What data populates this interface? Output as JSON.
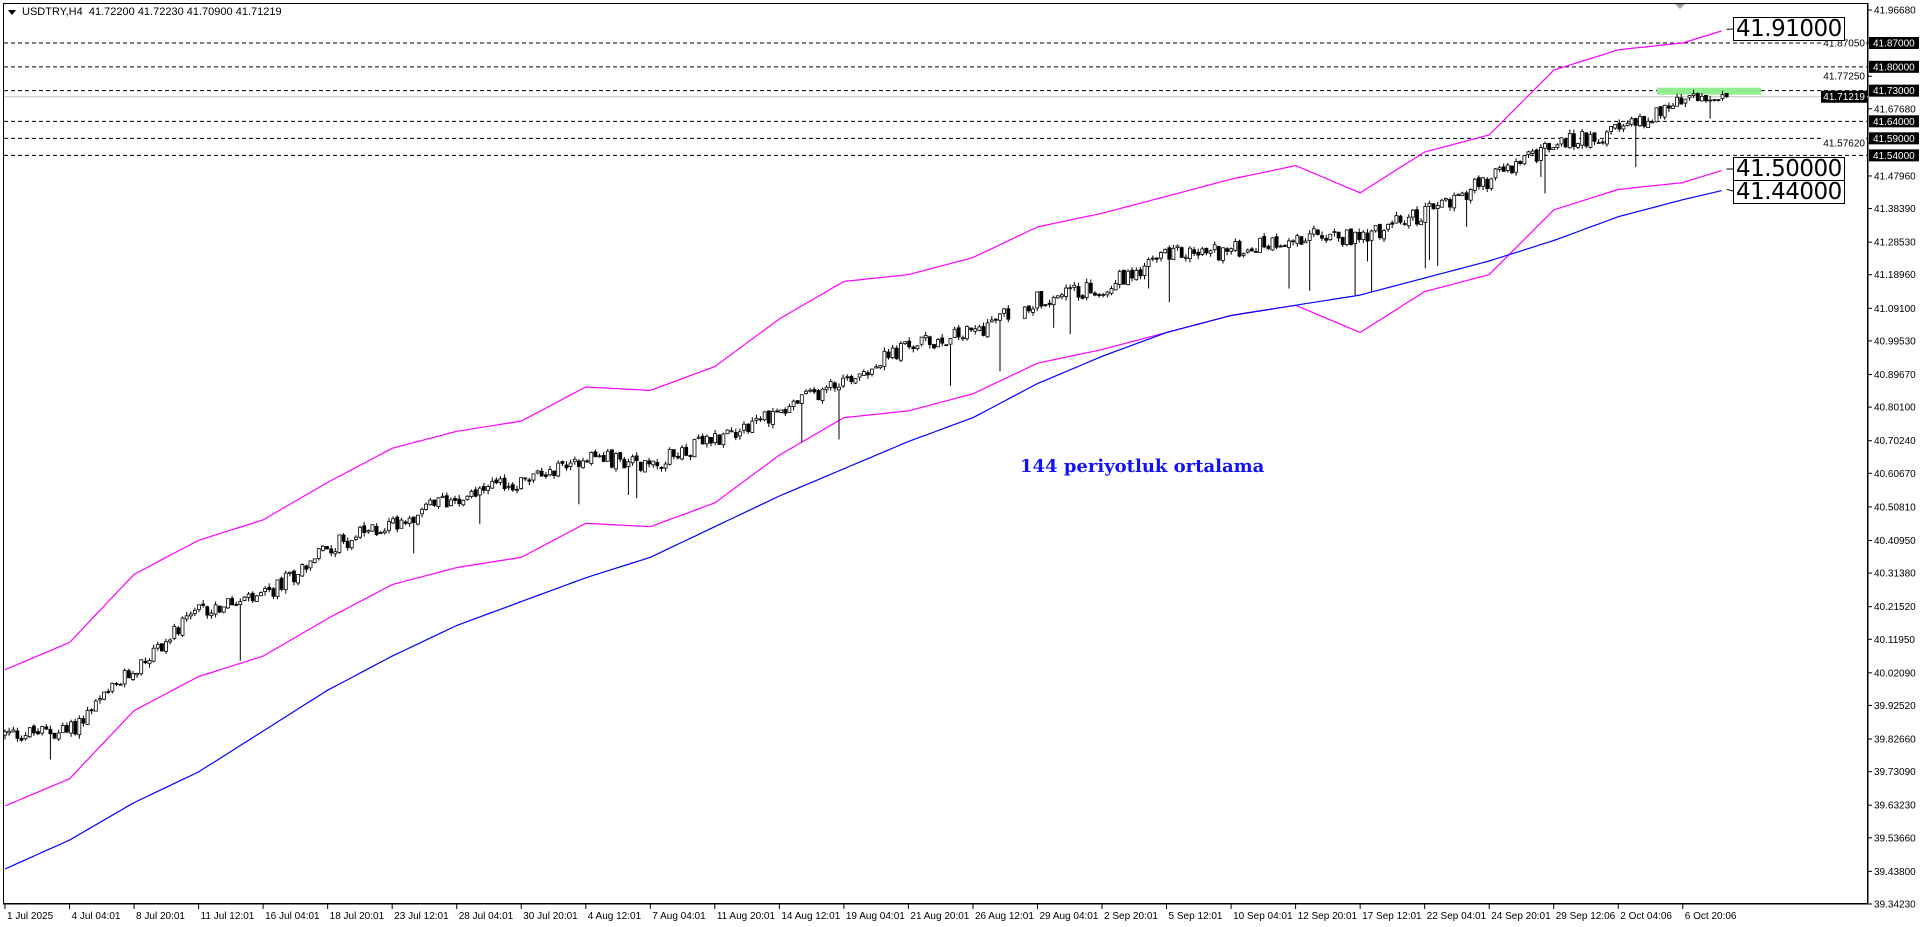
{
  "header": {
    "symbol_timeframe": "USDTRY,H4",
    "open": "41.72200",
    "high": "41.72230",
    "low": "41.70900",
    "close": "41.71219"
  },
  "annotation": "144 periyotluk ortalama",
  "value_boxes": [
    {
      "label": "41.91000",
      "series": "upper_envelope"
    },
    {
      "label": "41.50000",
      "series": "lower_envelope"
    },
    {
      "label": "41.44000",
      "series": "moving_average"
    }
  ],
  "colors": {
    "envelope": "#ff00ff",
    "moving_average": "#0000ff",
    "candle_up_fill": "#ffffff",
    "candle_down_fill": "#000000",
    "resistance_zone": "#90ee90",
    "level_line": "#000000",
    "current_price_line": "#c0c0c0"
  },
  "chart_data": {
    "type": "candlestick",
    "title": "",
    "symbol": "USDTRY",
    "timeframe": "H4",
    "grid": false,
    "ylim": [
      39.3423,
      41.9668
    ],
    "y_ticks": [
      "41.96680",
      "41.87050",
      "41.77250",
      "41.67680",
      "41.57620",
      "41.47960",
      "41.38390",
      "41.28530",
      "41.18960",
      "41.09100",
      "40.99530",
      "40.89670",
      "40.80100",
      "40.70240",
      "40.60670",
      "40.50810",
      "40.40950",
      "40.31380",
      "40.21520",
      "40.11950",
      "40.02090",
      "39.92520",
      "39.82660",
      "39.73090",
      "39.63230",
      "39.53660",
      "39.43800",
      "39.34230"
    ],
    "x_ticks": [
      "1 Jul 2025",
      "4 Jul 04:01",
      "8 Jul 20:01",
      "11 Jul 12:01",
      "16 Jul 04:01",
      "18 Jul 20:01",
      "23 Jul 12:01",
      "28 Jul 04:01",
      "30 Jul 20:01",
      "4 Aug 12:01",
      "7 Aug 04:01",
      "11 Aug 20:01",
      "14 Aug 12:01",
      "19 Aug 04:01",
      "21 Aug 20:01",
      "26 Aug 12:01",
      "29 Aug 04:01",
      "2 Sep 20:01",
      "5 Sep 12:01",
      "10 Sep 04:01",
      "12 Sep 20:01",
      "17 Sep 12:01",
      "22 Sep 04:01",
      "24 Sep 20:01",
      "29 Sep 12:06",
      "2 Oct 04:06",
      "6 Oct 20:06"
    ],
    "close_at_ticks": [
      39.84,
      39.85,
      40.03,
      40.2,
      40.24,
      40.39,
      40.46,
      40.54,
      40.58,
      40.66,
      40.63,
      40.71,
      40.79,
      40.88,
      40.98,
      41.02,
      41.12,
      41.15,
      41.25,
      41.26,
      41.3,
      41.3,
      41.37,
      41.47,
      41.57,
      41.61,
      41.7
    ],
    "last_bar": {
      "open": 41.722,
      "high": 41.7223,
      "low": 41.709,
      "close": 41.71219
    },
    "series": [
      {
        "name": "upper_envelope",
        "values_at_ticks": [
          40.03,
          40.11,
          40.31,
          40.41,
          40.47,
          40.58,
          40.68,
          40.73,
          40.76,
          40.86,
          40.85,
          40.92,
          41.06,
          41.17,
          41.19,
          41.24,
          41.33,
          41.37,
          41.42,
          41.47,
          41.51,
          41.43,
          41.55,
          41.6,
          41.79,
          41.85,
          41.87
        ],
        "last": 41.91
      },
      {
        "name": "lower_envelope",
        "values_at_ticks": [
          39.63,
          39.71,
          39.91,
          40.01,
          40.07,
          40.18,
          40.28,
          40.33,
          40.36,
          40.46,
          40.45,
          40.52,
          40.66,
          40.77,
          40.79,
          40.84,
          40.93,
          40.97,
          41.02,
          41.07,
          41.1,
          41.02,
          41.14,
          41.19,
          41.38,
          41.44,
          41.46
        ],
        "last": 41.5
      },
      {
        "name": "moving_average",
        "values_at_ticks": [
          39.445,
          39.53,
          39.64,
          39.73,
          39.85,
          39.97,
          40.07,
          40.16,
          40.23,
          40.3,
          40.36,
          40.45,
          40.54,
          40.62,
          40.7,
          40.77,
          40.87,
          40.95,
          41.02,
          41.07,
          41.1,
          41.13,
          41.18,
          41.23,
          41.29,
          41.36,
          41.41
        ],
        "last": 41.44
      }
    ],
    "horizontal_levels": [
      {
        "price": 41.87,
        "label": "41.87000"
      },
      {
        "price": 41.8,
        "label": "41.80000"
      },
      {
        "price": 41.73,
        "label": "41.73000"
      },
      {
        "price": 41.64,
        "label": "41.64000"
      },
      {
        "price": 41.59,
        "label": "41.59000"
      },
      {
        "price": 41.54,
        "label": "41.54000"
      }
    ],
    "current_price": {
      "price": 41.71219,
      "label": "41.71219"
    },
    "resistance_zone_price": 41.73
  }
}
